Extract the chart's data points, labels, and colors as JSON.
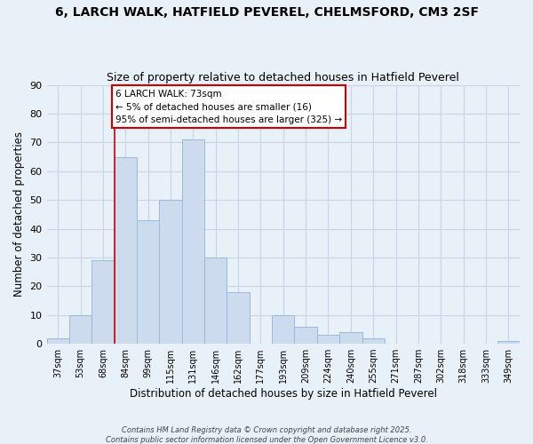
{
  "title1": "6, LARCH WALK, HATFIELD PEVEREL, CHELMSFORD, CM3 2SF",
  "title2": "Size of property relative to detached houses in Hatfield Peverel",
  "xlabel": "Distribution of detached houses by size in Hatfield Peverel",
  "ylabel": "Number of detached properties",
  "categories": [
    "37sqm",
    "53sqm",
    "68sqm",
    "84sqm",
    "99sqm",
    "115sqm",
    "131sqm",
    "146sqm",
    "162sqm",
    "177sqm",
    "193sqm",
    "209sqm",
    "224sqm",
    "240sqm",
    "255sqm",
    "271sqm",
    "287sqm",
    "302sqm",
    "318sqm",
    "333sqm",
    "349sqm"
  ],
  "values": [
    2,
    10,
    29,
    65,
    43,
    50,
    71,
    30,
    18,
    0,
    10,
    6,
    3,
    4,
    2,
    0,
    0,
    0,
    0,
    0,
    1
  ],
  "bar_color": "#ccdcee",
  "bar_edge_color": "#99bbd8",
  "vline_color": "#cc0000",
  "annotation_title": "6 LARCH WALK: 73sqm",
  "annotation_line1": "← 5% of detached houses are smaller (16)",
  "annotation_line2": "95% of semi-detached houses are larger (325) →",
  "ylim": [
    0,
    90
  ],
  "yticks": [
    0,
    10,
    20,
    30,
    40,
    50,
    60,
    70,
    80,
    90
  ],
  "grid_color": "#c5d5e5",
  "background_color": "#e8f0f8",
  "footer1": "Contains HM Land Registry data © Crown copyright and database right 2025.",
  "footer2": "Contains public sector information licensed under the Open Government Licence v3.0."
}
